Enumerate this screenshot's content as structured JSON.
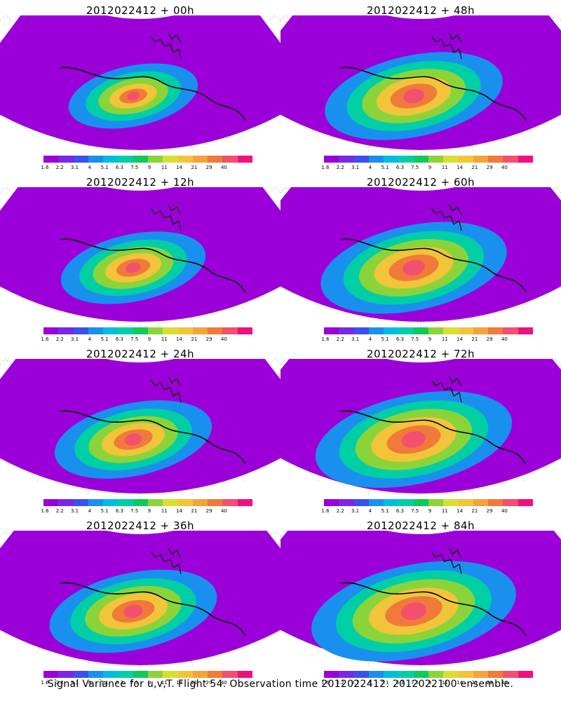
{
  "panels": [
    {
      "title": "2012022412  + 00h",
      "intensity": 0.15
    },
    {
      "title": "2012022412  + 48h",
      "intensity": 0.62
    },
    {
      "title": "2012022412  + 12h",
      "intensity": 0.3
    },
    {
      "title": "2012022412  + 60h",
      "intensity": 0.7
    },
    {
      "title": "2012022412  + 24h",
      "intensity": 0.42
    },
    {
      "title": "2012022412  + 72h",
      "intensity": 0.8
    },
    {
      "title": "2012022412  + 36h",
      "intensity": 0.52
    },
    {
      "title": "2012022412  + 84h",
      "intensity": 0.88
    }
  ],
  "colorbar": {
    "labels": [
      "1.6",
      "2.2",
      "3.1",
      "4",
      "5.1",
      "6.3",
      "7.5",
      "9",
      "11",
      "14",
      "21",
      "29",
      "40"
    ],
    "colors": [
      "#9b00d8",
      "#7a27e6",
      "#3c4ff0",
      "#1a90ee",
      "#00bde0",
      "#00cfa6",
      "#10c95a",
      "#8ad43a",
      "#d8df30",
      "#f2c43a",
      "#f2a43a",
      "#f07a3a",
      "#f2506e",
      "#f0107e"
    ]
  },
  "footer": "Signal Variance for u,v,T.  Flight 54.  Observation time 2012022412.  2012022100 ensemble."
}
